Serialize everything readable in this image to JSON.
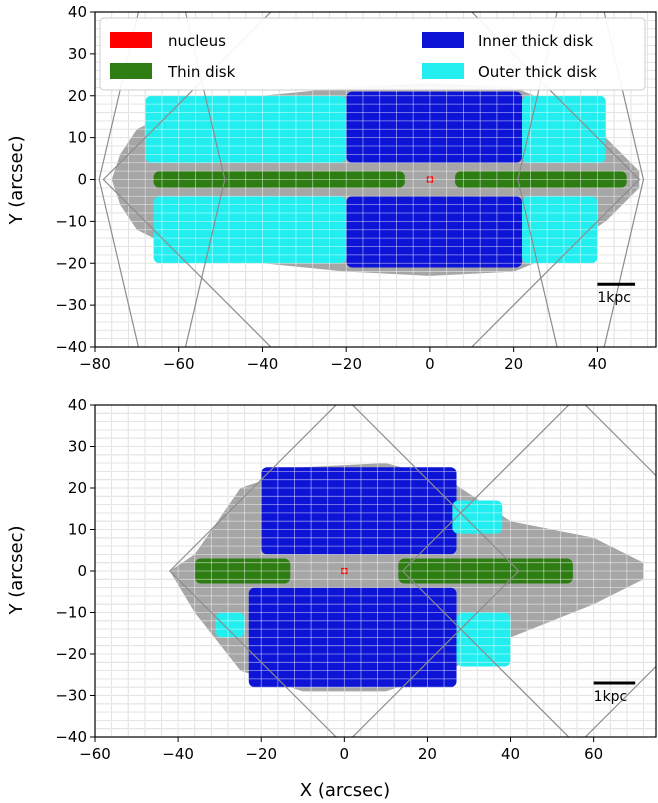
{
  "colors": {
    "nucleus": "#ff0000",
    "thin_disk": "#2e7d12",
    "inner_thick_disk": "#0d14d6",
    "outer_thick_disk": "#22eef0",
    "galaxy_body": "#a6a6a6",
    "grid": "#b8b8b8",
    "footprint": "#8c8c8c"
  },
  "legend": {
    "placement": "top",
    "items": [
      {
        "key": "nucleus",
        "label": "nucleus",
        "color": "#ff0000"
      },
      {
        "key": "thin_disk",
        "label": "Thin disk",
        "color": "#2e7d12"
      },
      {
        "key": "inner_thick_disk",
        "label": "Inner thick disk",
        "color": "#0d14d6"
      },
      {
        "key": "outer_thick_disk",
        "label": "Outer thick disk",
        "color": "#22eef0"
      }
    ]
  },
  "chart_data": [
    {
      "type": "scatter",
      "title": "",
      "xlabel": "",
      "ylabel": "Y (arcsec)",
      "xlim": [
        -80,
        54
      ],
      "ylim": [
        -40,
        40
      ],
      "xticks": [
        -80,
        -60,
        -40,
        -20,
        0,
        20,
        40
      ],
      "yticks": [
        -40,
        -30,
        -20,
        -10,
        0,
        10,
        20,
        30,
        40
      ],
      "grid": true,
      "scale_bar": {
        "label": "1kpc",
        "length_arcsec": 9,
        "x_start": 40,
        "y": -25
      },
      "regions": [
        {
          "name": "nucleus",
          "x": 0,
          "y": 0
        },
        {
          "name": "Thin disk",
          "x_range": [
            -66,
            -6
          ],
          "y_range": [
            -2,
            2
          ]
        },
        {
          "name": "Thin disk",
          "x_range": [
            6,
            47
          ],
          "y_range": [
            -2,
            2
          ]
        },
        {
          "name": "Inner thick disk",
          "x_range": [
            -20,
            22
          ],
          "y_range": [
            4,
            21
          ]
        },
        {
          "name": "Inner thick disk",
          "x_range": [
            -20,
            22
          ],
          "y_range": [
            -21,
            -4
          ]
        },
        {
          "name": "Outer thick disk",
          "x_range": [
            -68,
            -20
          ],
          "y_range": [
            4,
            20
          ]
        },
        {
          "name": "Outer thick disk",
          "x_range": [
            -66,
            -20
          ],
          "y_range": [
            -20,
            -4
          ]
        },
        {
          "name": "Outer thick disk",
          "x_range": [
            22,
            42
          ],
          "y_range": [
            4,
            20
          ]
        },
        {
          "name": "Outer thick disk",
          "x_range": [
            22,
            40
          ],
          "y_range": [
            -20,
            -4
          ]
        }
      ]
    },
    {
      "type": "scatter",
      "title": "",
      "xlabel": "X (arcsec)",
      "ylabel": "Y (arcsec)",
      "xlim": [
        -60,
        75
      ],
      "ylim": [
        -40,
        40
      ],
      "xticks": [
        -60,
        -40,
        -20,
        0,
        20,
        40,
        60
      ],
      "yticks": [
        -40,
        -30,
        -20,
        -10,
        0,
        10,
        20,
        30,
        40
      ],
      "grid": true,
      "scale_bar": {
        "label": "1kpc",
        "length_arcsec": 10,
        "x_start": 60,
        "y": -27
      },
      "regions": [
        {
          "name": "nucleus",
          "x": 0,
          "y": 0
        },
        {
          "name": "Thin disk",
          "x_range": [
            -36,
            -13
          ],
          "y_range": [
            -3,
            3
          ]
        },
        {
          "name": "Thin disk",
          "x_range": [
            13,
            55
          ],
          "y_range": [
            -3,
            3
          ]
        },
        {
          "name": "Inner thick disk",
          "x_range": [
            -20,
            27
          ],
          "y_range": [
            4,
            25
          ]
        },
        {
          "name": "Inner thick disk",
          "x_range": [
            -23,
            27
          ],
          "y_range": [
            -28,
            -4
          ]
        },
        {
          "name": "Outer thick disk",
          "x_range": [
            26,
            38
          ],
          "y_range": [
            9,
            17
          ]
        },
        {
          "name": "Outer thick disk",
          "x_range": [
            -31,
            -24
          ],
          "y_range": [
            -16,
            -10
          ]
        },
        {
          "name": "Outer thick disk",
          "x_range": [
            27,
            40
          ],
          "y_range": [
            -23,
            -10
          ]
        }
      ]
    }
  ]
}
